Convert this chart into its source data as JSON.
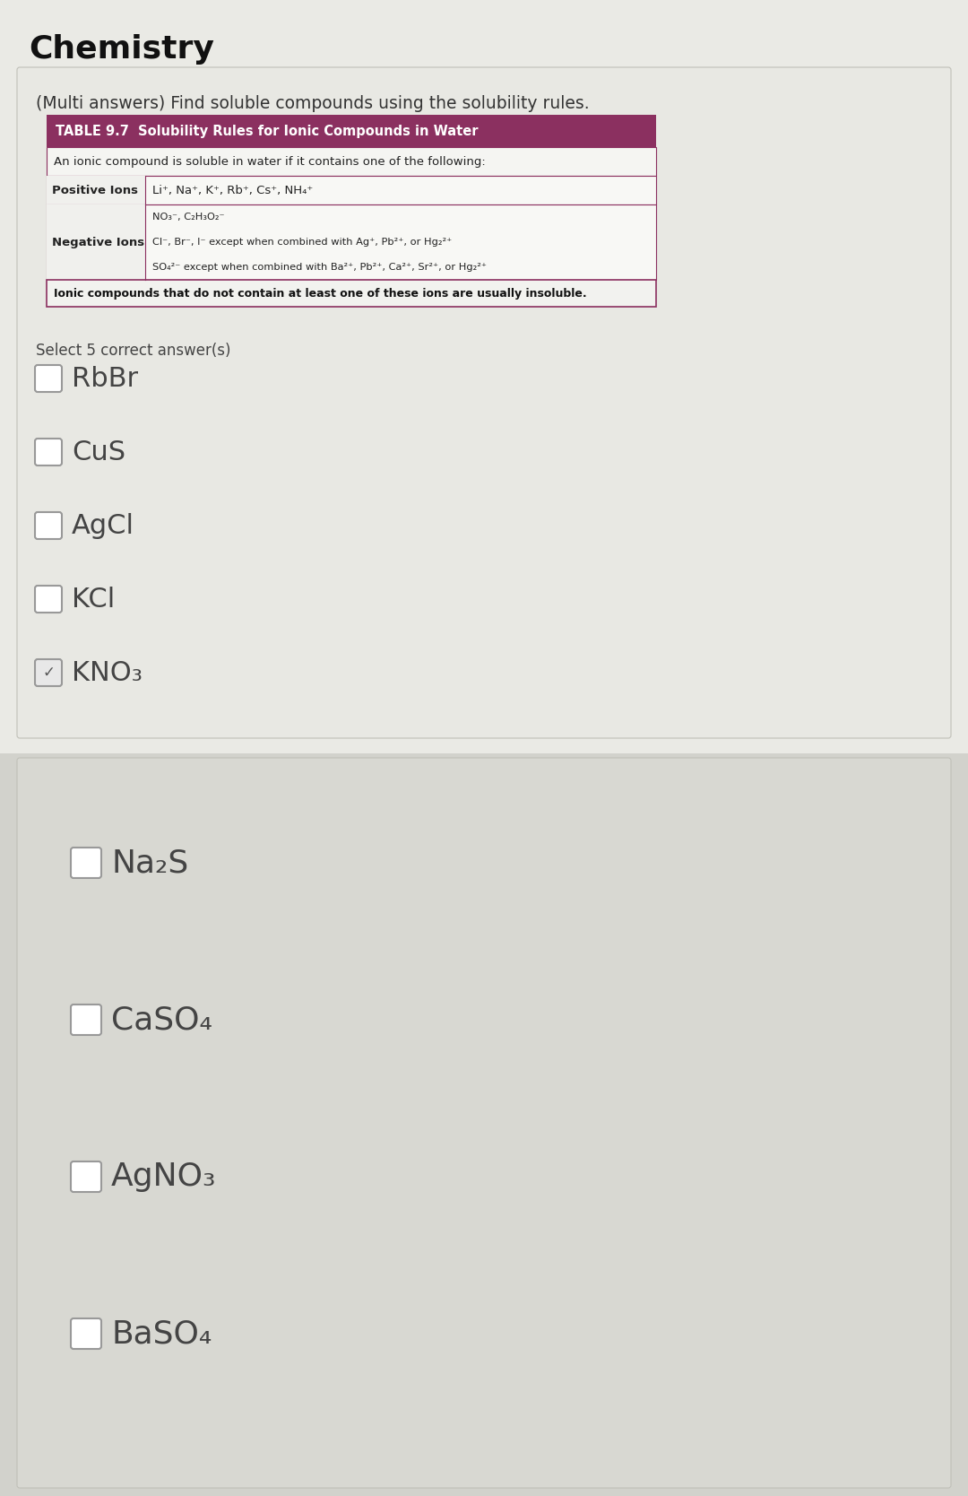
{
  "title": "Chemistry",
  "question": "(Multi answers) Find soluble compounds using the solubility rules.",
  "table_title": "TABLE 9.7  Solubility Rules for Ionic Compounds in Water",
  "table_subtitle": "An ionic compound is soluble in water if it contains one of the following:",
  "table_pos_label": "Positive Ions",
  "table_pos_ions": "Li⁺, Na⁺, K⁺, Rb⁺, Cs⁺, NH₄⁺",
  "table_neg_label": "Negative Ions",
  "table_neg_row1": "NO₃⁻, C₂H₃O₂⁻",
  "table_neg_row2": "Cl⁻, Br⁻, I⁻ except when combined with Ag⁺, Pb²⁺, or Hg₂²⁺",
  "table_neg_row3": "SO₄²⁻ except when combined with Ba²⁺, Pb²⁺, Ca²⁺, Sr²⁺, or Hg₂²⁺",
  "table_footer": "Ionic compounds that do not contain at least one of these ions are usually insoluble.",
  "select_text": "Select 5 correct answer(s)",
  "options_top": [
    {
      "label": "RbBr",
      "checked": false
    },
    {
      "label": "CuS",
      "checked": false
    },
    {
      "label": "AgCl",
      "checked": false
    },
    {
      "label": "KCl",
      "checked": false
    },
    {
      "label": "KNO₃",
      "checked": true
    }
  ],
  "options_bot": [
    {
      "label": "Na₂S",
      "checked": false
    },
    {
      "label": "CaSO₄",
      "checked": false
    },
    {
      "label": "AgNO₃",
      "checked": false
    },
    {
      "label": "BaSO₄",
      "checked": false
    }
  ],
  "bg_top": "#e8e8e3",
  "bg_bot": "#d4d4cc",
  "table_hdr_bg": "#8b3060",
  "table_hdr_fg": "#ffffff",
  "table_border": "#8b3060",
  "table_bg": "#f0f0f0",
  "table_footer_bg": "#f0f0f0",
  "card_top_bg": "#e8e8e3",
  "card_bot_bg": "#d8d8d2",
  "chk_border": "#aaaaaa",
  "chk_bg": "#ffffff",
  "opt_color": "#444444",
  "title_color": "#111111",
  "question_bg": "#e0e0da"
}
